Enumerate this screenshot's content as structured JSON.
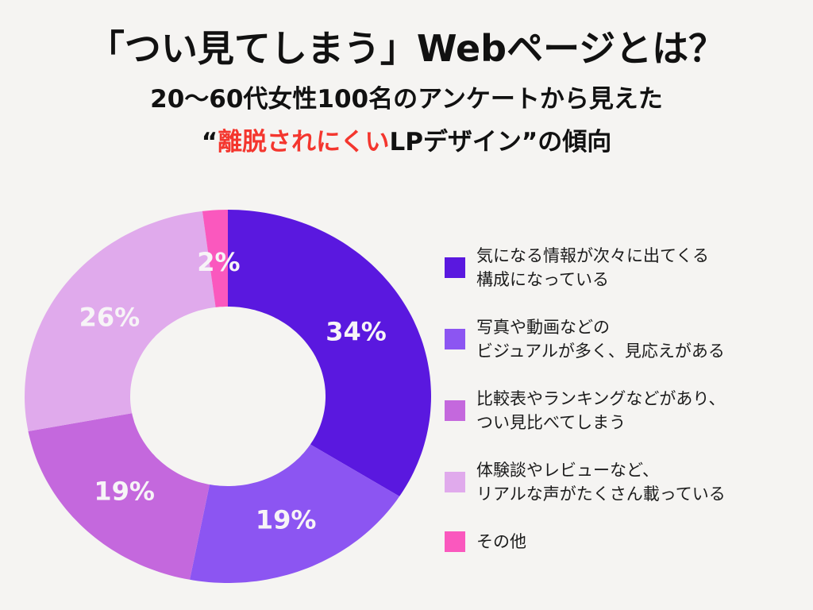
{
  "page": {
    "background_color": "#f5f4f2"
  },
  "header": {
    "title": "「つい見てしまう」Webページとは？",
    "subtitle1": "20〜60代女性100名のアンケートから見えた",
    "subtitle2": {
      "prefix": "“",
      "highlight": "離脱されにくい",
      "rest": "LPデザイン”の傾向"
    },
    "highlight_color": "#f4362e",
    "text_color": "#111111"
  },
  "chart_data": {
    "type": "pie",
    "subtype": "donut",
    "direction": "clockwise",
    "start_angle_deg": 0,
    "hole_fraction": 0.48,
    "legend_position": "right",
    "categories": [
      "気になる情報が次々に出てくる構成になっている",
      "写真や動画などのビジュアルが多く、見応えがある",
      "比較表やランキングなどがあり、つい見比べてしまう",
      "体験談やレビューなど、リアルな声がたくさん載っている",
      "その他"
    ],
    "values": [
      34,
      19,
      19,
      26,
      2
    ],
    "slice_labels": [
      "34%",
      "19%",
      "19%",
      "26%",
      "2%"
    ],
    "colors": [
      "#5a18df",
      "#8c55f2",
      "#c468dd",
      "#e0aaec",
      "#fa58be"
    ],
    "slice_label_color": "#f7f4f7"
  },
  "legend": {
    "items": [
      {
        "lines": [
          "気になる情報が次々に出てくる",
          "構成になっている"
        ]
      },
      {
        "lines": [
          "写真や動画などの",
          "ビジュアルが多く、見応えがある"
        ]
      },
      {
        "lines": [
          "比較表やランキングなどがあり、",
          "つい見比べてしまう"
        ]
      },
      {
        "lines": [
          "体験談やレビューなど、",
          "リアルな声がたくさん載っている"
        ]
      },
      {
        "lines": [
          "その他"
        ]
      }
    ]
  }
}
